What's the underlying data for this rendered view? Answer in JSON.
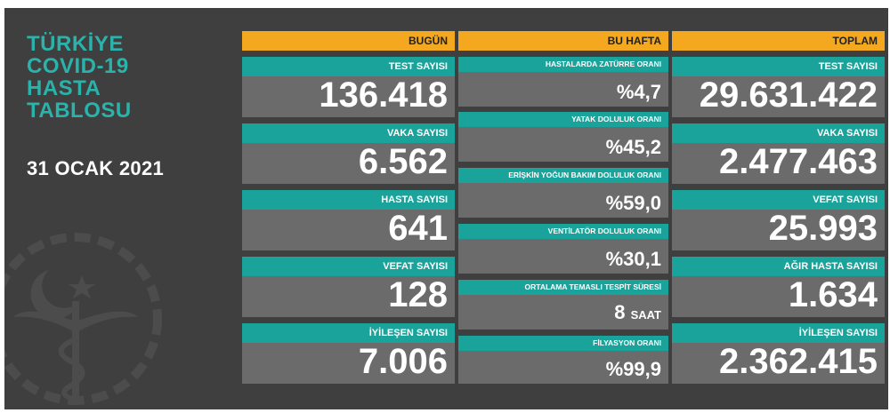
{
  "title_lines": [
    "TÜRKİYE",
    "COVID-19",
    "HASTA",
    "TABLOSU"
  ],
  "date": "31 OCAK 2021",
  "colors": {
    "background": "#3f3f3f",
    "header": "#f3a81f",
    "label": "#1aa39a",
    "card": "#6b6b6b",
    "title": "#2ab3aa"
  },
  "columns": {
    "bugun": {
      "header": "BUGÜN",
      "items": [
        {
          "label": "TEST SAYISI",
          "value": "136.418"
        },
        {
          "label": "VAKA SAYISI",
          "value": "6.562"
        },
        {
          "label": "HASTA SAYISI",
          "value": "641"
        },
        {
          "label": "VEFAT SAYISI",
          "value": "128"
        },
        {
          "label": "İYİLEŞEN SAYISI",
          "value": "7.006"
        }
      ]
    },
    "bu_hafta": {
      "header": "BU HAFTA",
      "items": [
        {
          "label": "HASTALARDA ZATÜRRE ORANI",
          "value": "%4,7"
        },
        {
          "label": "YATAK DOLULUK ORANI",
          "value": "%45,2"
        },
        {
          "label": "ERİŞKİN YOĞUN BAKIM DOLULUK ORANI",
          "value": "%59,0"
        },
        {
          "label": "VENTİLATÖR DOLULUK ORANI",
          "value": "%30,1"
        },
        {
          "label": "ORTALAMA TEMASLI TESPİT SÜRESİ",
          "value": "8",
          "unit": "SAAT"
        },
        {
          "label": "FİLYASYON ORANI",
          "value": "%99,9"
        }
      ]
    },
    "toplam": {
      "header": "TOPLAM",
      "items": [
        {
          "label": "TEST SAYISI",
          "value": "29.631.422"
        },
        {
          "label": "VAKA SAYISI",
          "value": "2.477.463"
        },
        {
          "label": "VEFAT SAYISI",
          "value": "25.993"
        },
        {
          "label": "AĞIR HASTA SAYISI",
          "value": "1.634"
        },
        {
          "label": "İYİLEŞEN SAYISI",
          "value": "2.362.415"
        }
      ]
    }
  },
  "emblem_icon": "ministry-of-health-emblem-icon"
}
